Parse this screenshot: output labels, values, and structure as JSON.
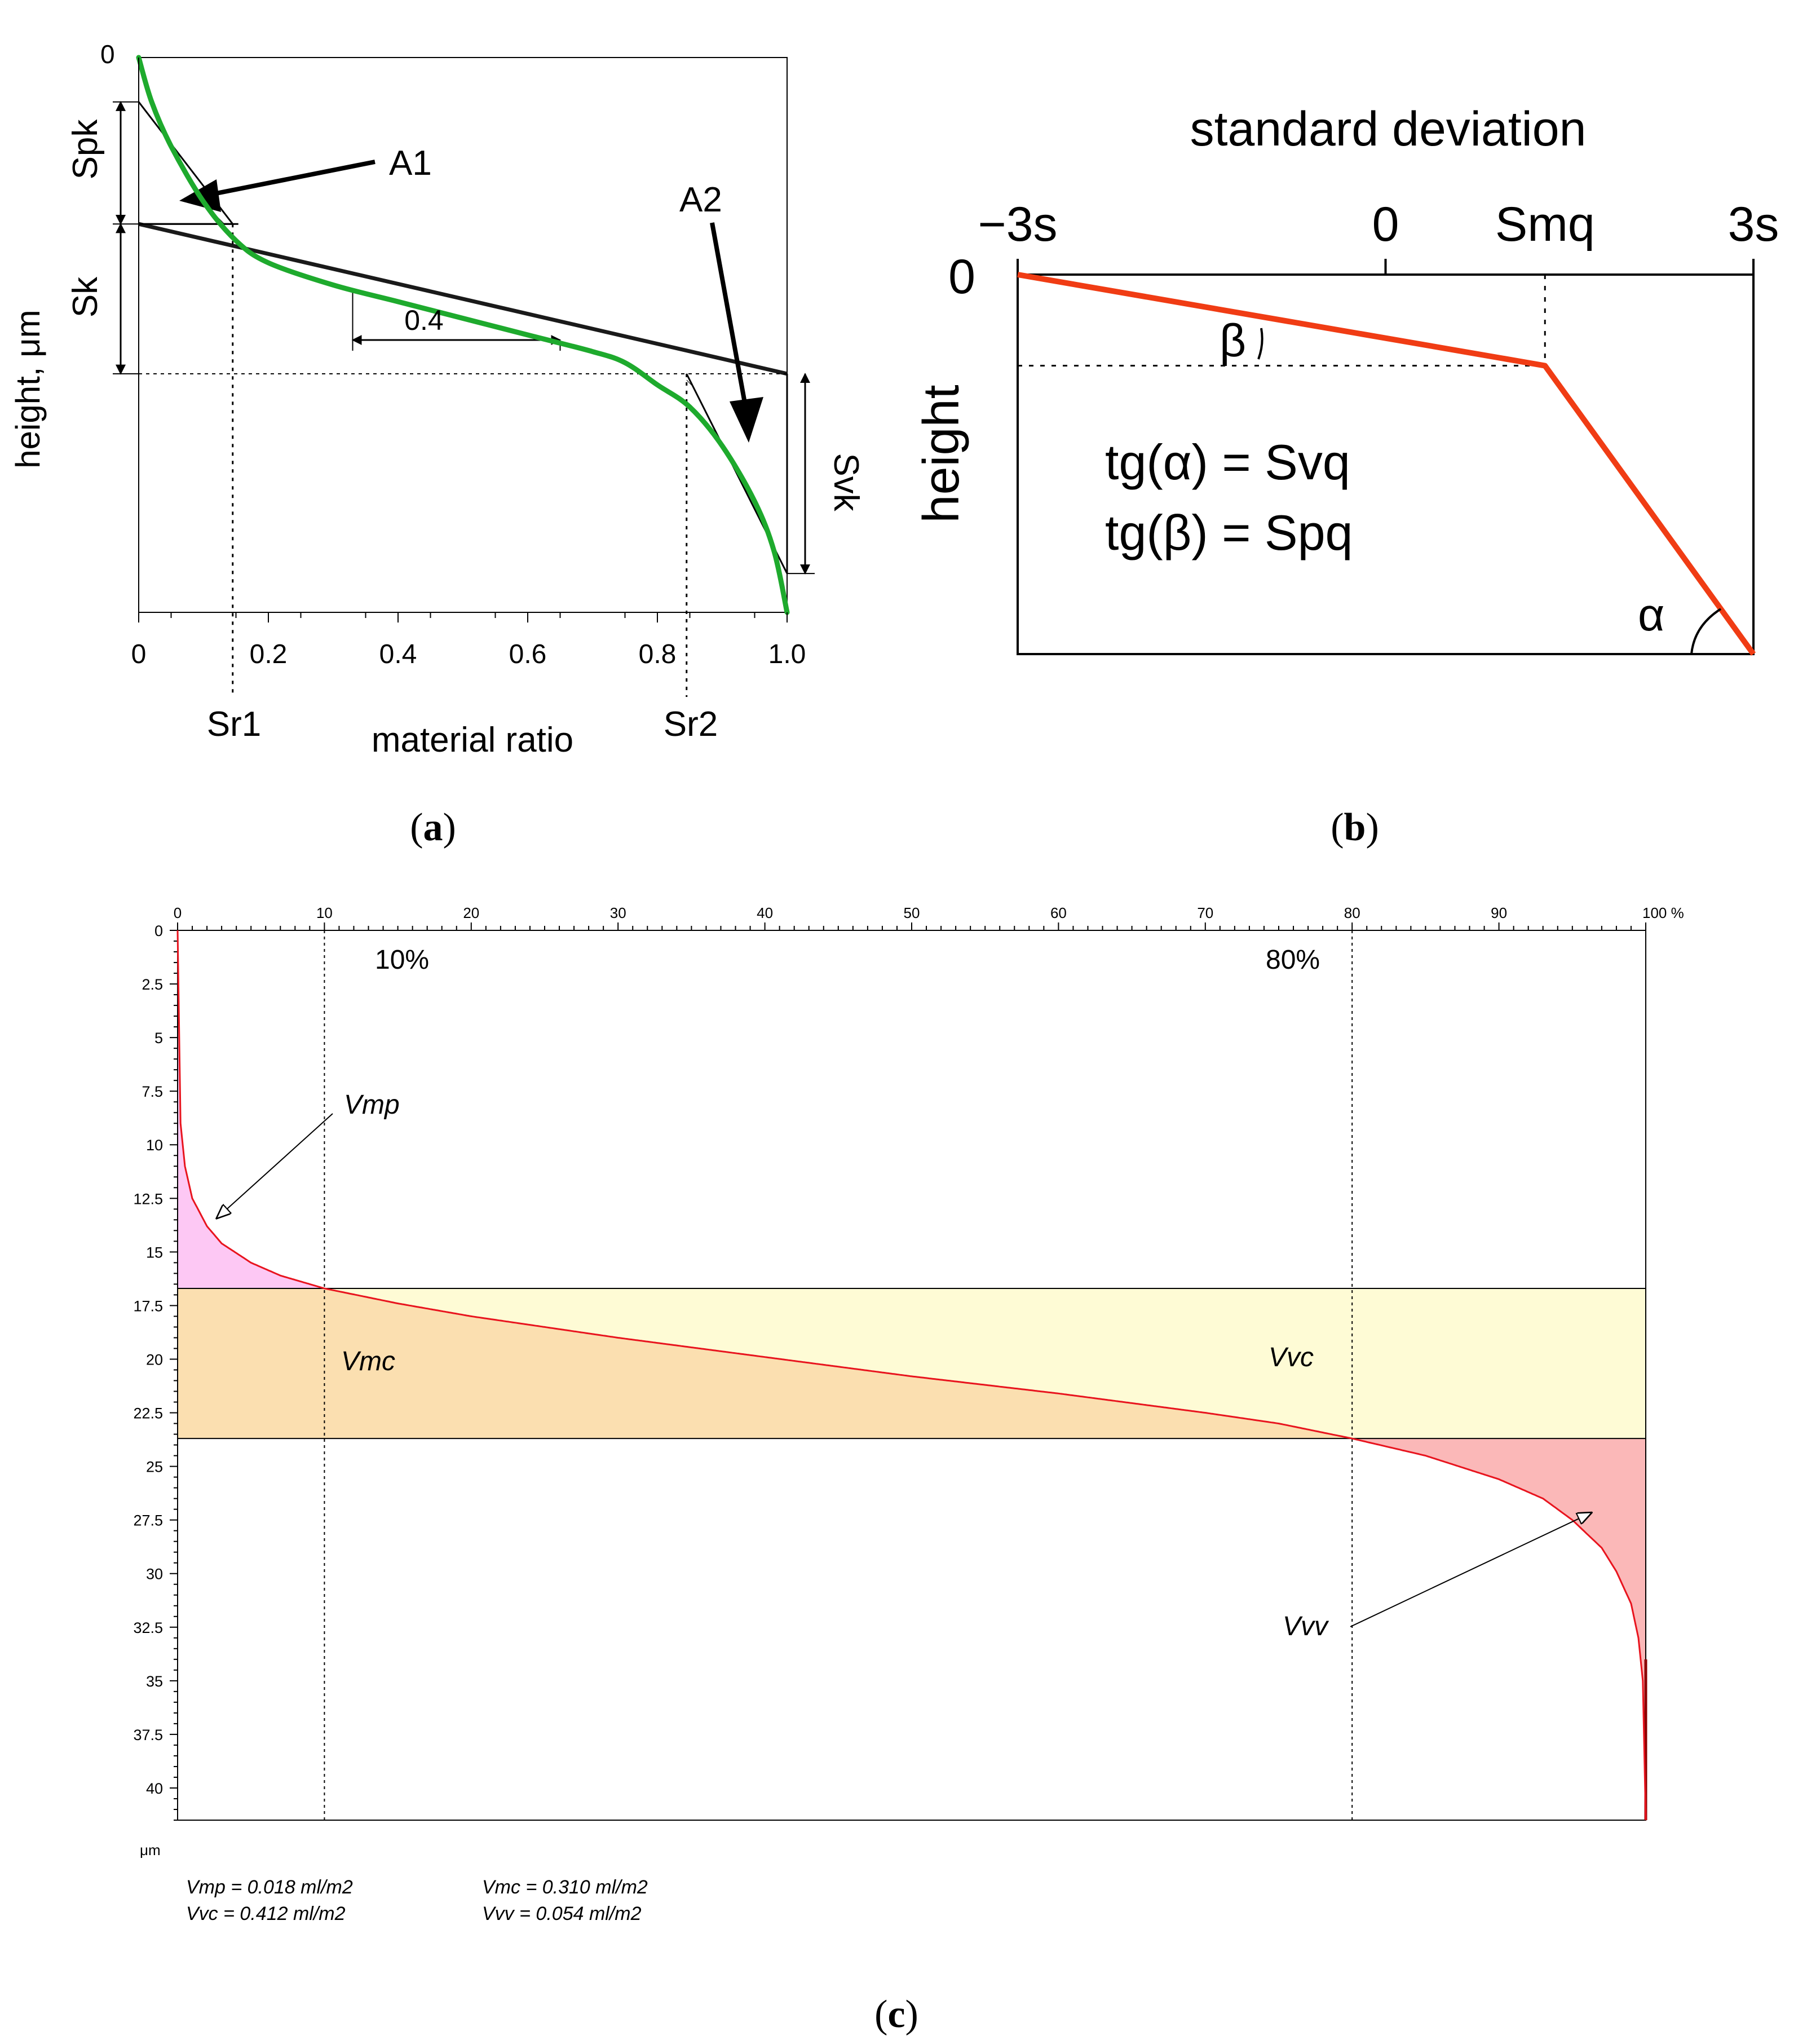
{
  "panels": {
    "a": {
      "caption_letter": "a",
      "xlabel": "material ratio",
      "ylabel": "height, μm",
      "y_zero": "0",
      "x_ticks": [
        "0",
        "0.2",
        "0.4",
        "0.6",
        "0.8",
        "1.0"
      ],
      "labels": {
        "spk": "Spk",
        "sk": "Sk",
        "svk": "Svk",
        "a1": "A1",
        "a2": "A2",
        "sr1": "Sr1",
        "sr2": "Sr2",
        "width": "0.4"
      }
    },
    "b": {
      "caption_letter": "b",
      "title": "standard deviation",
      "ylabel": "height",
      "x_ticks": [
        "−3s",
        "0",
        "Smq",
        "3s"
      ],
      "y_zero": "0",
      "beta": "β",
      "alpha": "α",
      "formula1": "tg(α) = Svq",
      "formula2": "tg(β) = Spq"
    },
    "c": {
      "caption_letter": "c",
      "unit": "μm",
      "x_tick_labels": [
        "0",
        "10",
        "20",
        "30",
        "40",
        "50",
        "60",
        "70",
        "80",
        "90",
        "100 %"
      ],
      "y_tick_labels": [
        "0",
        "2.5",
        "5",
        "7.5",
        "10",
        "12.5",
        "15",
        "17.5",
        "20",
        "22.5",
        "25",
        "27.5",
        "30",
        "32.5",
        "35",
        "37.5",
        "40"
      ],
      "pct10": "10%",
      "pct80": "80%",
      "vmp": "Vmp",
      "vmc": "Vmc",
      "vvc": "Vvc",
      "vvv": "Vvv",
      "results": {
        "vmp": "Vmp = 0.018 ml/m2",
        "vmc": "Vmc = 0.310 ml/m2",
        "vvc": "Vvc = 0.412 ml/m2",
        "vvv": "Vvv = 0.054 ml/m2"
      },
      "colors": {
        "curve": "#e8141e",
        "vmp_fill": "#fdc8f4",
        "vmc_fill": "#fbdfb0",
        "vvc_fill": "#fefbd5",
        "vvv_fill": "#fbb8b8"
      }
    }
  },
  "chart_data": [
    {
      "id": "a",
      "type": "line",
      "title": "",
      "xlabel": "material ratio",
      "ylabel": "height, μm",
      "xlim": [
        0,
        1.0
      ],
      "x_ticks": [
        0,
        0.2,
        0.4,
        0.6,
        0.8,
        1.0
      ],
      "series": [
        {
          "name": "material ratio curve",
          "color": "#1eaa2d",
          "x": [
            0,
            0.02,
            0.05,
            0.1,
            0.15,
            0.2,
            0.3,
            0.4,
            0.5,
            0.6,
            0.7,
            0.75,
            0.8,
            0.85,
            0.9,
            0.95,
            0.98,
            1.0
          ],
          "depth": [
            0,
            0.08,
            0.16,
            0.26,
            0.33,
            0.37,
            0.41,
            0.44,
            0.47,
            0.5,
            0.53,
            0.55,
            0.59,
            0.63,
            0.7,
            0.8,
            0.89,
            1.0
          ]
        },
        {
          "name": "equivalent line",
          "color": "#1a1a1a",
          "x": [
            0,
            1.0
          ],
          "depth": [
            0.3,
            0.57
          ]
        }
      ],
      "levels": {
        "sk_top": 0.3,
        "sk_bottom": 0.57,
        "spk_top": 0.08,
        "svk_bottom": 0.93
      },
      "sr1": 0.145,
      "sr2": 0.845,
      "window": [
        0.33,
        0.65
      ]
    },
    {
      "id": "b",
      "type": "line",
      "title": "standard deviation",
      "xlabel": "standard deviation",
      "ylabel": "height",
      "x_ticks": [
        "−3s",
        "0",
        "Smq",
        "3s"
      ],
      "xlim": [
        -3,
        3
      ],
      "series": [
        {
          "name": "probability material ratio curve",
          "color": "#f03c14",
          "x": [
            -3,
            1.3,
            3
          ],
          "depth": [
            0,
            0.24,
            1.0
          ]
        }
      ],
      "smq": 1.3
    },
    {
      "id": "c",
      "type": "area",
      "title": "",
      "xlabel": "",
      "ylabel": "μm",
      "xlim": [
        0,
        100
      ],
      "ylim": [
        0,
        41.5
      ],
      "x_ticks": [
        0,
        10,
        20,
        30,
        40,
        50,
        60,
        70,
        80,
        90,
        100
      ],
      "y_ticks": [
        0,
        2.5,
        5,
        7.5,
        10,
        12.5,
        15,
        17.5,
        20,
        22.5,
        25,
        27.5,
        30,
        32.5,
        35,
        37.5,
        40
      ],
      "mr_left": 10,
      "mr_right": 80,
      "level_left": 16.7,
      "level_right": 23.7,
      "series": [
        {
          "name": "Abbott curve",
          "color": "#e8141e",
          "x": [
            0,
            0.2,
            0.5,
            1,
            2,
            3,
            5,
            7,
            10,
            15,
            20,
            30,
            40,
            50,
            60,
            70,
            75,
            80,
            85,
            90,
            93,
            95,
            97,
            98,
            99,
            99.5,
            99.8,
            100
          ],
          "y": [
            0,
            9.0,
            11.0,
            12.5,
            13.8,
            14.6,
            15.5,
            16.1,
            16.7,
            17.4,
            18.0,
            19.0,
            19.9,
            20.8,
            21.6,
            22.5,
            23.0,
            23.7,
            24.5,
            25.6,
            26.5,
            27.5,
            28.8,
            29.9,
            31.4,
            33.0,
            35.0,
            41.5
          ]
        }
      ]
    }
  ]
}
